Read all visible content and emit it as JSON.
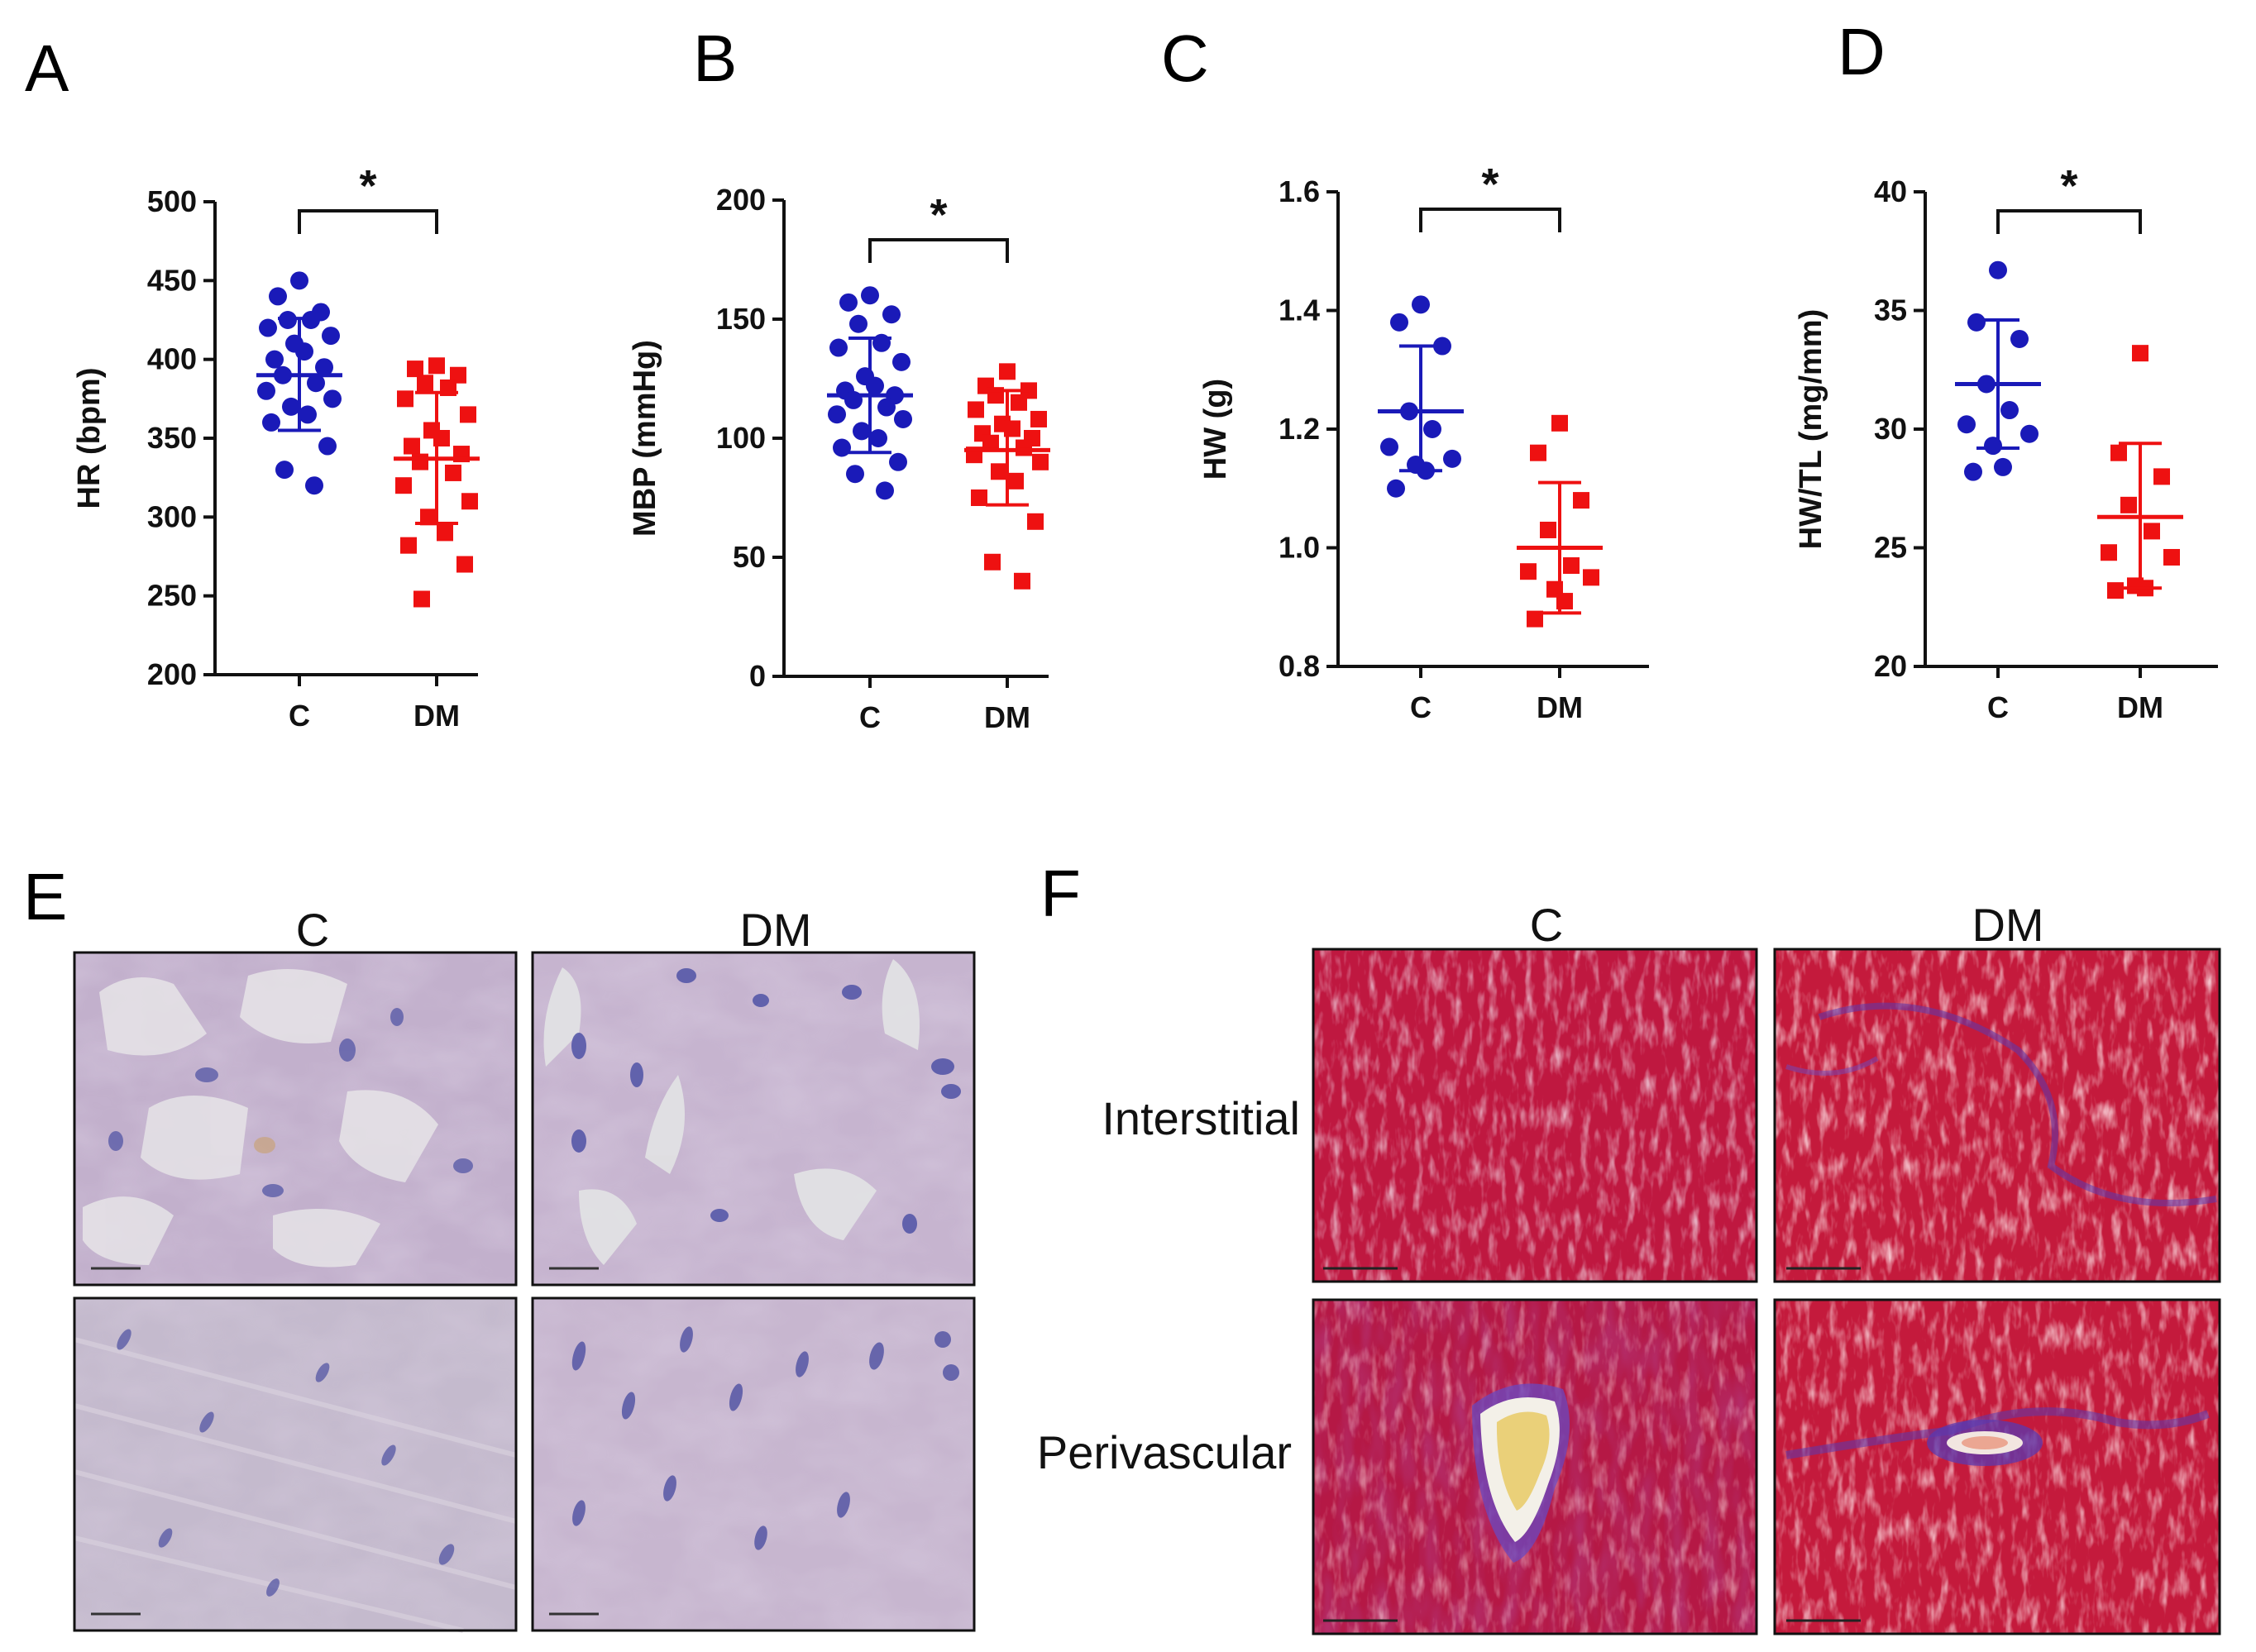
{
  "panels": {
    "A": "A",
    "B": "B",
    "C": "C",
    "D": "D",
    "E": "E",
    "F": "F"
  },
  "colors": {
    "control": "#1a1ab8",
    "dm": "#ee1111",
    "axis": "#111111",
    "he_bg": "#c4b3cf",
    "he_nuclei": "#5a5ca8",
    "tri_bg": "#c81c3c",
    "tri_fibrosis": "#5a3cb0"
  },
  "chart_data": [
    {
      "panel": "A",
      "type": "scatter",
      "title": "",
      "xlabel": "",
      "ylabel": "HR (bpm)",
      "categories": [
        "C",
        "DM"
      ],
      "ylim": [
        200,
        500
      ],
      "yticks": [
        200,
        250,
        300,
        350,
        400,
        450,
        500
      ],
      "ytick_labels": [
        "200",
        "250",
        "300",
        "350",
        "400",
        "450",
        "500"
      ],
      "significance": "*",
      "series": [
        {
          "name": "C",
          "color": "control",
          "marker": "circle",
          "mean": 390,
          "sd_low": 355,
          "sd_high": 426,
          "values": [
            450,
            440,
            430,
            425,
            425,
            420,
            415,
            410,
            405,
            400,
            395,
            390,
            385,
            380,
            375,
            370,
            365,
            360,
            345,
            330,
            320
          ]
        },
        {
          "name": "DM",
          "color": "dm",
          "marker": "square",
          "mean": 337,
          "sd_low": 296,
          "sd_high": 379,
          "values": [
            396,
            394,
            390,
            385,
            382,
            375,
            365,
            355,
            350,
            345,
            340,
            335,
            328,
            320,
            310,
            300,
            290,
            282,
            270,
            248
          ]
        }
      ]
    },
    {
      "panel": "B",
      "type": "scatter",
      "title": "",
      "xlabel": "",
      "ylabel": "MBP (mmHg)",
      "categories": [
        "C",
        "DM"
      ],
      "ylim": [
        0,
        200
      ],
      "yticks": [
        0,
        50,
        100,
        150,
        200
      ],
      "ytick_labels": [
        "0",
        "50",
        "100",
        "150",
        "200"
      ],
      "significance": "*",
      "series": [
        {
          "name": "C",
          "color": "control",
          "marker": "circle",
          "mean": 118,
          "sd_low": 94,
          "sd_high": 142,
          "values": [
            160,
            157,
            152,
            148,
            140,
            138,
            132,
            126,
            122,
            120,
            118,
            116,
            113,
            110,
            108,
            103,
            100,
            96,
            90,
            85,
            78
          ]
        },
        {
          "name": "DM",
          "color": "dm",
          "marker": "square",
          "mean": 95,
          "sd_low": 72,
          "sd_high": 120,
          "values": [
            128,
            122,
            120,
            118,
            115,
            112,
            108,
            106,
            104,
            102,
            100,
            98,
            96,
            93,
            90,
            86,
            82,
            75,
            65,
            48,
            40
          ]
        }
      ]
    },
    {
      "panel": "C",
      "type": "scatter",
      "title": "",
      "xlabel": "",
      "ylabel": "HW (g)",
      "categories": [
        "C",
        "DM"
      ],
      "ylim": [
        0.8,
        1.6
      ],
      "yticks": [
        0.8,
        1.0,
        1.2,
        1.4,
        1.6
      ],
      "ytick_labels": [
        "0.8",
        "1.0",
        "1.2",
        "1.4",
        "1.6"
      ],
      "significance": "*",
      "series": [
        {
          "name": "C",
          "color": "control",
          "marker": "circle",
          "mean": 1.23,
          "sd_low": 1.13,
          "sd_high": 1.34,
          "values": [
            1.41,
            1.38,
            1.34,
            1.23,
            1.2,
            1.17,
            1.15,
            1.14,
            1.13,
            1.1
          ]
        },
        {
          "name": "DM",
          "color": "dm",
          "marker": "square",
          "mean": 1.0,
          "sd_low": 0.89,
          "sd_high": 1.11,
          "values": [
            1.21,
            1.16,
            1.08,
            1.03,
            0.97,
            0.96,
            0.95,
            0.93,
            0.91,
            0.88
          ]
        }
      ]
    },
    {
      "panel": "D",
      "type": "scatter",
      "title": "",
      "xlabel": "",
      "ylabel": "HW/TL (mg/mm)",
      "categories": [
        "C",
        "DM"
      ],
      "ylim": [
        20,
        40
      ],
      "yticks": [
        20,
        25,
        30,
        35,
        40
      ],
      "ytick_labels": [
        "20",
        "25",
        "30",
        "35",
        "40"
      ],
      "significance": "*",
      "series": [
        {
          "name": "C",
          "color": "control",
          "marker": "circle",
          "mean": 31.9,
          "sd_low": 29.2,
          "sd_high": 34.6,
          "values": [
            36.7,
            34.5,
            33.8,
            31.9,
            30.8,
            30.2,
            29.8,
            29.3,
            28.4,
            28.2
          ]
        },
        {
          "name": "DM",
          "color": "dm",
          "marker": "square",
          "mean": 26.3,
          "sd_low": 23.3,
          "sd_high": 29.4,
          "values": [
            33.2,
            29.0,
            28.0,
            26.8,
            25.7,
            24.8,
            24.6,
            23.4,
            23.3,
            23.2
          ]
        }
      ]
    }
  ],
  "histology": {
    "E": {
      "headers": [
        "C",
        "DM"
      ]
    },
    "F": {
      "headers": [
        "C",
        "DM"
      ],
      "rows": [
        "Interstitial",
        "Perivascular"
      ]
    }
  }
}
